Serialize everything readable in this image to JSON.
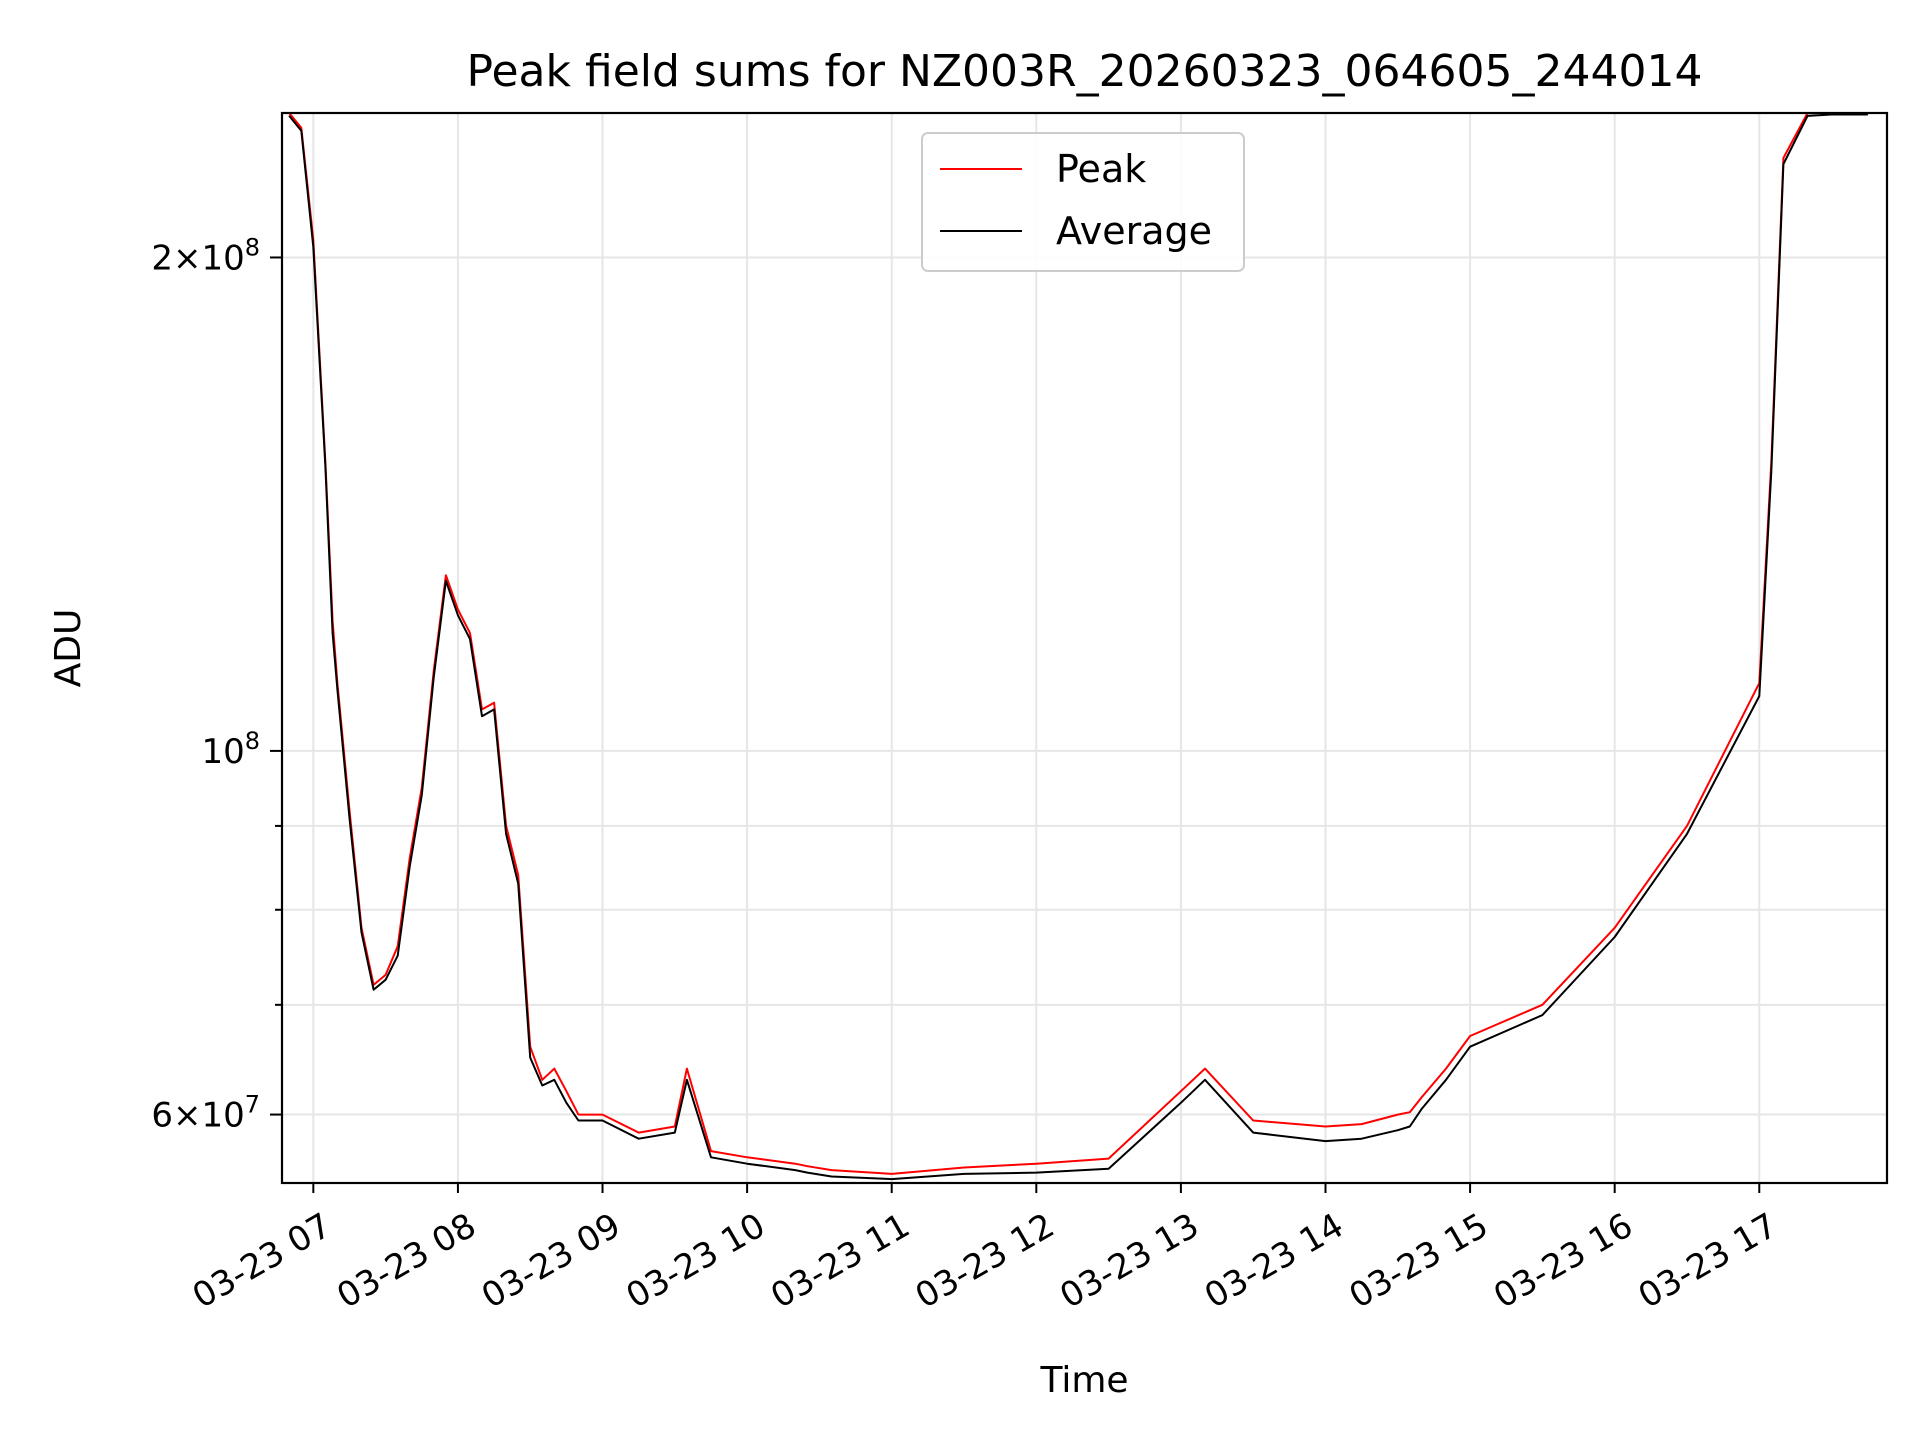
{
  "chart_data": {
    "type": "line",
    "title": "Peak field sums for NZ003R_20260323_064605_244014",
    "xlabel": "Time",
    "ylabel": "ADU",
    "y_scale": "log",
    "grid": true,
    "legend_position": "top-center",
    "x_range": [
      "03-23 06:47",
      "03-23 17:53"
    ],
    "ylim": [
      54500000,
      245000000
    ],
    "x_tick_labels": [
      "03-23 07",
      "03-23 08",
      "03-23 09",
      "03-23 10",
      "03-23 11",
      "03-23 12",
      "03-23 13",
      "03-23 14",
      "03-23 15",
      "03-23 16",
      "03-23 17"
    ],
    "y_tick_labels": [
      {
        "value": 200000000,
        "mantissa": "2",
        "exponent": "8"
      },
      {
        "value": 100000000,
        "mantissa": "",
        "exponent": "8"
      },
      {
        "value": 60000000,
        "mantissa": "6",
        "exponent": "7"
      }
    ],
    "y_minor_ticks": [
      70000000,
      80000000,
      90000000
    ],
    "series": [
      {
        "name": "Peak",
        "color": "#ff0000",
        "x": [
          "03-23 06:50",
          "03-23 06:55",
          "03-23 07:00",
          "03-23 07:05",
          "03-23 07:08",
          "03-23 07:10",
          "03-23 07:15",
          "03-23 07:20",
          "03-23 07:25",
          "03-23 07:30",
          "03-23 07:35",
          "03-23 07:40",
          "03-23 07:45",
          "03-23 07:50",
          "03-23 07:55",
          "03-23 08:00",
          "03-23 08:05",
          "03-23 08:10",
          "03-23 08:15",
          "03-23 08:20",
          "03-23 08:25",
          "03-23 08:30",
          "03-23 08:35",
          "03-23 08:40",
          "03-23 08:45",
          "03-23 08:50",
          "03-23 09:00",
          "03-23 09:15",
          "03-23 09:30",
          "03-23 09:35",
          "03-23 09:45",
          "03-23 10:00",
          "03-23 10:20",
          "03-23 10:25",
          "03-23 10:35",
          "03-23 11:00",
          "03-23 11:30",
          "03-23 12:00",
          "03-23 12:30",
          "03-23 13:00",
          "03-23 13:10",
          "03-23 13:30",
          "03-23 14:00",
          "03-23 14:15",
          "03-23 14:30",
          "03-23 14:35",
          "03-23 14:40",
          "03-23 14:50",
          "03-23 15:00",
          "03-23 15:30",
          "03-23 16:00",
          "03-23 16:30",
          "03-23 17:00",
          "03-23 17:05",
          "03-23 17:10",
          "03-23 17:20",
          "03-23 17:30",
          "03-23 17:35",
          "03-23 17:45"
        ],
        "y": [
          245000000,
          240000000,
          205000000,
          150000000,
          120000000,
          110000000,
          92000000,
          78000000,
          72000000,
          73000000,
          76000000,
          86000000,
          95000000,
          112000000,
          128000000,
          122000000,
          118000000,
          106000000,
          107000000,
          90000000,
          84000000,
          66000000,
          63000000,
          64000000,
          62000000,
          60000000,
          60000000,
          58500000,
          59000000,
          64000000,
          57000000,
          56500000,
          56000000,
          55800000,
          55500000,
          55200000,
          55700000,
          56000000,
          56400000,
          62000000,
          64000000,
          59500000,
          59000000,
          59200000,
          60000000,
          60200000,
          61500000,
          64000000,
          67000000,
          70000000,
          78000000,
          90000000,
          110000000,
          150000000,
          230000000,
          245000000,
          245000000,
          245000000,
          245000000
        ]
      },
      {
        "name": "Average",
        "color": "#000000",
        "x": [
          "03-23 06:50",
          "03-23 06:55",
          "03-23 07:00",
          "03-23 07:05",
          "03-23 07:08",
          "03-23 07:10",
          "03-23 07:15",
          "03-23 07:20",
          "03-23 07:25",
          "03-23 07:30",
          "03-23 07:35",
          "03-23 07:40",
          "03-23 07:45",
          "03-23 07:50",
          "03-23 07:55",
          "03-23 08:00",
          "03-23 08:05",
          "03-23 08:10",
          "03-23 08:15",
          "03-23 08:20",
          "03-23 08:25",
          "03-23 08:30",
          "03-23 08:35",
          "03-23 08:40",
          "03-23 08:45",
          "03-23 08:50",
          "03-23 09:00",
          "03-23 09:15",
          "03-23 09:30",
          "03-23 09:35",
          "03-23 09:45",
          "03-23 10:00",
          "03-23 10:20",
          "03-23 10:25",
          "03-23 10:35",
          "03-23 11:00",
          "03-23 11:30",
          "03-23 12:00",
          "03-23 12:30",
          "03-23 13:00",
          "03-23 13:10",
          "03-23 13:30",
          "03-23 14:00",
          "03-23 14:15",
          "03-23 14:30",
          "03-23 14:35",
          "03-23 14:40",
          "03-23 14:50",
          "03-23 15:00",
          "03-23 15:30",
          "03-23 16:00",
          "03-23 16:30",
          "03-23 17:00",
          "03-23 17:05",
          "03-23 17:10",
          "03-23 17:20",
          "03-23 17:30",
          "03-23 17:35",
          "03-23 17:45"
        ],
        "y": [
          244000000,
          239000000,
          203000000,
          149000000,
          118000000,
          109000000,
          91000000,
          77500000,
          71500000,
          72500000,
          75000000,
          85000000,
          94000000,
          111000000,
          127000000,
          121000000,
          117000000,
          105000000,
          106000000,
          89000000,
          83000000,
          65000000,
          62500000,
          63000000,
          61000000,
          59500000,
          59500000,
          58000000,
          58500000,
          63000000,
          56500000,
          56000000,
          55500000,
          55300000,
          55000000,
          54800000,
          55200000,
          55300000,
          55600000,
          61000000,
          63000000,
          58500000,
          57800000,
          58000000,
          58700000,
          59000000,
          60500000,
          63000000,
          66000000,
          69000000,
          77000000,
          89000000,
          108000000,
          148000000,
          228000000,
          244000000,
          244500000,
          244500000,
          244500000
        ]
      }
    ]
  }
}
